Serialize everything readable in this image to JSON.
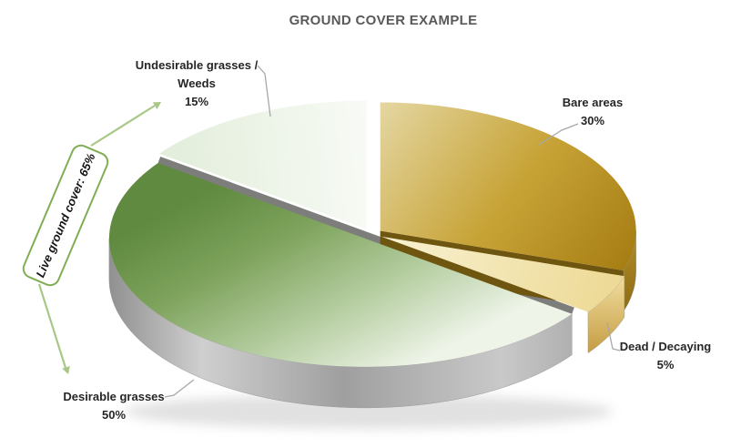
{
  "chart_data": {
    "type": "pie",
    "style": "3d-exploded",
    "title": "GROUND COVER EXAMPLE",
    "categories": [
      "Bare areas",
      "Dead / Decaying",
      "Desirable grasses",
      "Undesirable grasses / Weeds"
    ],
    "values": [
      30,
      5,
      50,
      15
    ],
    "unit": "%",
    "start_angle_deg": 90,
    "direction": "clockwise",
    "legend": "none",
    "callout": "Live ground cover: 65%",
    "slices": [
      {
        "label": "Bare areas",
        "value": 30,
        "pct_label": "30%",
        "label_lines": [
          "Bare areas"
        ]
      },
      {
        "label": "Dead / Decaying",
        "value": 5,
        "pct_label": "5%",
        "label_lines": [
          "Dead / Decaying"
        ]
      },
      {
        "label": "Desirable grasses",
        "value": 50,
        "pct_label": "50%",
        "label_lines": [
          "Desirable grasses"
        ]
      },
      {
        "label": "Undesirable grasses / Weeds",
        "value": 15,
        "pct_label": "15%",
        "label_lines": [
          "Undesirable grasses /",
          "Weeds"
        ]
      }
    ],
    "colors": {
      "bare_top": [
        "#e7dbab",
        "#c7a336",
        "#a57c12"
      ],
      "bare_side": [
        "#b28c26",
        "#7b5c0a"
      ],
      "bare_cut": "#6e5610",
      "dead_top": [
        "#f8f1d0",
        "#ecd78f"
      ],
      "dead_side": [
        "#f0dc9e",
        "#c1973a"
      ],
      "desirable_top": [
        "#5f8a3f",
        "#7da25b",
        "#b3cc9e",
        "#eef4e8"
      ],
      "desirable_side": [
        "#8f8f8f",
        "#cfcfcf",
        "#9f9f9f",
        "#c9c9c9",
        "#9a9a9a"
      ],
      "desirable_cut": "#7d7d7b",
      "undesirable_top": [
        "#e2edda",
        "#f8fbf6"
      ],
      "accent_green": "#7fae54",
      "arrow_green": "#a8c888",
      "leader_gray": "#a8a8a8",
      "title_color": "#595959",
      "label_color": "#262626"
    }
  },
  "annotation": {
    "text": "Live ground cover: 65%"
  }
}
